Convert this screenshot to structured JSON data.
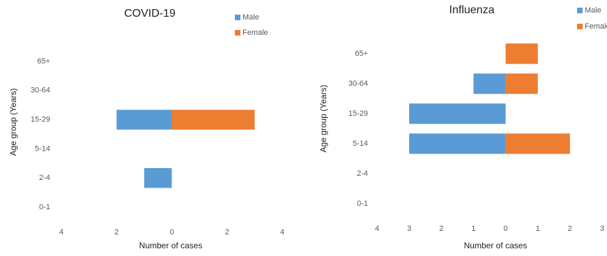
{
  "chart_data": [
    {
      "type": "bar",
      "orientation": "horizontal",
      "title": "COVID-19",
      "y_label": "Age group (Years)",
      "x_label": "Number of cases",
      "categories": [
        "0-1",
        "2-4",
        "5-14",
        "15-29",
        "30-64",
        "65+"
      ],
      "series": [
        {
          "name": "Male",
          "color": "#5b9bd5",
          "values": [
            0,
            -1,
            0,
            -2,
            0,
            0
          ]
        },
        {
          "name": "Female",
          "color": "#ed7d31",
          "values": [
            0,
            0,
            0,
            3,
            0,
            0
          ]
        }
      ],
      "xlim": [
        -4,
        4
      ],
      "xticks": [
        {
          "value": -4,
          "label": "4"
        },
        {
          "value": -2,
          "label": "2"
        },
        0,
        2,
        4
      ],
      "grid": false
    },
    {
      "type": "bar",
      "orientation": "horizontal",
      "title": "Influenza",
      "y_label": "Age group (Years)",
      "x_label": "Number of cases",
      "categories": [
        "0-1",
        "2-4",
        "5-14",
        "15-29",
        "30-64",
        "65+"
      ],
      "series": [
        {
          "name": "Male",
          "color": "#5b9bd5",
          "values": [
            0,
            0,
            -3,
            -3,
            -1,
            0
          ]
        },
        {
          "name": "Female",
          "color": "#ed7d31",
          "values": [
            0,
            0,
            2,
            0,
            1,
            1
          ]
        }
      ],
      "xlim": [
        -4,
        3
      ],
      "xticks": [
        {
          "value": -4,
          "label": "4"
        },
        {
          "value": -3,
          "label": "3"
        },
        {
          "value": -2,
          "label": "2"
        },
        {
          "value": -1,
          "label": "1"
        },
        0,
        1,
        2,
        3
      ],
      "grid": false
    }
  ]
}
